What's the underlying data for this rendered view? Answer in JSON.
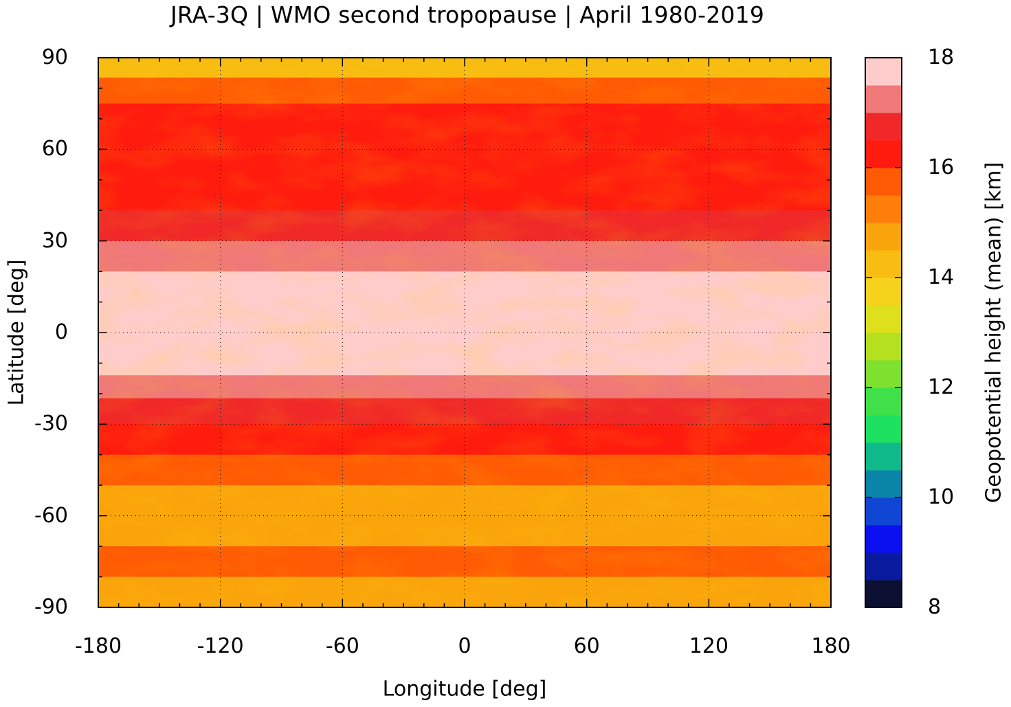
{
  "title": "JRA-3Q | WMO second tropopause | April 1980-2019",
  "colorbar": {
    "label": "Geopotential height (mean) [km]",
    "range": [
      8,
      18
    ],
    "step": 0.5,
    "tick_values": [
      8,
      10,
      12,
      14,
      16,
      18
    ],
    "tick_labels": [
      "8",
      "10",
      "12",
      "14",
      "16",
      "18"
    ],
    "colors": [
      "#0b1033",
      "#0a1a9e",
      "#0a10f0",
      "#1046d4",
      "#0a85a8",
      "#0fb98a",
      "#1ee060",
      "#40e04a",
      "#7ee02f",
      "#b5e020",
      "#dde01a",
      "#f5d21c",
      "#f8bc12",
      "#faa40c",
      "#ff7e0a",
      "#ff5a04",
      "#ff1c0e",
      "#f02828",
      "#f07878",
      "#ffcccc"
    ]
  },
  "axes": {
    "xlabel": "Longitude [deg]",
    "ylabel": "Latitude [deg]",
    "xlim": [
      -180,
      180
    ],
    "ylim": [
      -90,
      90
    ],
    "xticks": [
      -180,
      -120,
      -60,
      0,
      60,
      120,
      180
    ],
    "xtick_labels": [
      "-180",
      "-120",
      "-60",
      "0",
      "60",
      "120",
      "180"
    ],
    "yticks": [
      -90,
      -60,
      -30,
      0,
      30,
      60,
      90
    ],
    "ytick_labels": [
      "-90",
      "-60",
      "-30",
      "0",
      "30",
      "60",
      "90"
    ],
    "grid": true
  },
  "map": {
    "type": "heatmap",
    "projection": "equirectangular",
    "coastlines_color": "#b8b8b8",
    "zonal_mean_km": [
      {
        "lat": 87,
        "value": 14.2
      },
      {
        "lat": 80,
        "value": 15.5
      },
      {
        "lat": 70,
        "value": 16.2
      },
      {
        "lat": 60,
        "value": 16.4
      },
      {
        "lat": 45,
        "value": 16.3
      },
      {
        "lat": 35,
        "value": 16.8
      },
      {
        "lat": 25,
        "value": 17.2
      },
      {
        "lat": 15,
        "value": 17.6
      },
      {
        "lat": 0,
        "value": 17.8
      },
      {
        "lat": -10,
        "value": 17.6
      },
      {
        "lat": -18,
        "value": 17.2
      },
      {
        "lat": -25,
        "value": 16.9
      },
      {
        "lat": -35,
        "value": 16.3
      },
      {
        "lat": -45,
        "value": 15.5
      },
      {
        "lat": -55,
        "value": 14.6
      },
      {
        "lat": -65,
        "value": 14.8
      },
      {
        "lat": -75,
        "value": 15.8
      },
      {
        "lat": -85,
        "value": 14.5
      }
    ]
  }
}
